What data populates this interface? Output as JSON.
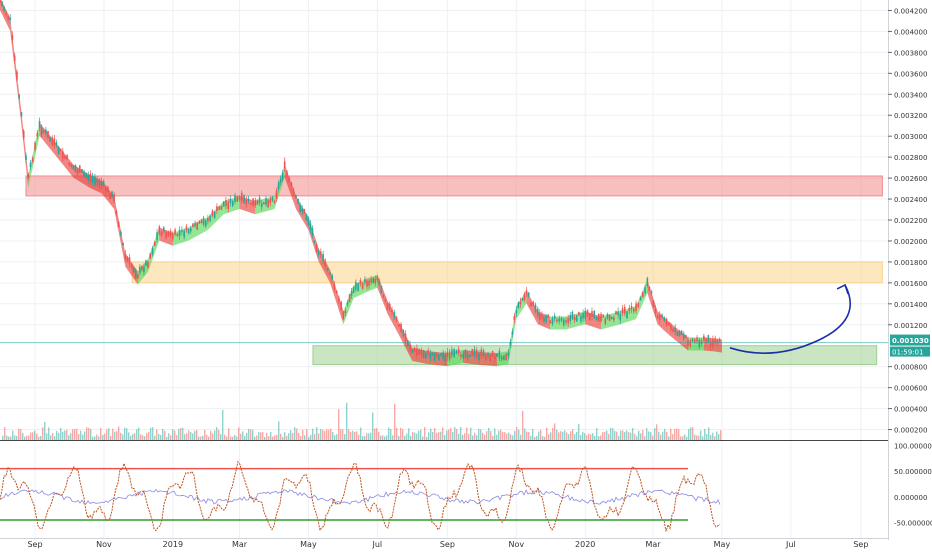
{
  "chart_data": {
    "type": "candlestick",
    "price_axis": {
      "ticks": [
        "0.004200",
        "0.004000",
        "0.003800",
        "0.003600",
        "0.003400",
        "0.003200",
        "0.003000",
        "0.002800",
        "0.002600",
        "0.002400",
        "0.002200",
        "0.002000",
        "0.001800",
        "0.001600",
        "0.001400",
        "0.001200",
        "0.000800",
        "0.000600",
        "0.000400",
        "0.000200"
      ],
      "range": [
        0.0001,
        0.0043
      ],
      "last_price_label": "0.001030",
      "last_price": 0.00103,
      "countdown_label": "01:59:01",
      "last_price_color": "#26a69a"
    },
    "time_axis": {
      "labels": [
        "Sep",
        "Nov",
        "2019",
        "Mar",
        "May",
        "Jul",
        "Sep",
        "Nov",
        "2020",
        "Mar",
        "May",
        "Jul",
        "Sep"
      ],
      "label_dates": [
        "2018-09-01",
        "2018-11-01",
        "2019-01-01",
        "2019-03-01",
        "2019-05-01",
        "2019-07-01",
        "2019-09-01",
        "2019-11-01",
        "2020-01-01",
        "2020-03-01",
        "2020-05-01",
        "2020-07-01",
        "2020-09-01"
      ],
      "range": [
        "2018-08-01",
        "2020-09-25"
      ]
    },
    "price_series": {
      "dates": [
        "2018-08-01",
        "2018-08-10",
        "2018-08-20",
        "2018-08-26",
        "2018-09-05",
        "2018-09-20",
        "2018-10-05",
        "2018-10-20",
        "2018-10-30",
        "2018-11-10",
        "2018-11-20",
        "2018-12-01",
        "2018-12-10",
        "2018-12-20",
        "2019-01-01",
        "2019-01-15",
        "2019-02-01",
        "2019-02-15",
        "2019-03-01",
        "2019-03-15",
        "2019-04-01",
        "2019-04-10",
        "2019-04-20",
        "2019-05-01",
        "2019-05-10",
        "2019-05-20",
        "2019-06-01",
        "2019-06-10",
        "2019-06-20",
        "2019-07-01",
        "2019-07-10",
        "2019-07-20",
        "2019-08-01",
        "2019-08-15",
        "2019-09-01",
        "2019-09-15",
        "2019-10-01",
        "2019-10-15",
        "2019-10-25",
        "2019-11-01",
        "2019-11-10",
        "2019-11-20",
        "2019-12-01",
        "2019-12-15",
        "2020-01-01",
        "2020-01-15",
        "2020-02-01",
        "2020-02-15",
        "2020-02-25",
        "2020-03-05",
        "2020-03-15",
        "2020-04-01",
        "2020-04-15",
        "2020-04-25",
        "2020-05-01"
      ],
      "values": [
        0.0043,
        0.0041,
        0.0032,
        0.0026,
        0.0031,
        0.0029,
        0.0027,
        0.0026,
        0.00255,
        0.0024,
        0.00185,
        0.00168,
        0.0018,
        0.0021,
        0.00205,
        0.0021,
        0.0022,
        0.00235,
        0.0024,
        0.00235,
        0.0024,
        0.0027,
        0.0024,
        0.0022,
        0.0019,
        0.0017,
        0.0013,
        0.00155,
        0.0016,
        0.00165,
        0.0014,
        0.0012,
        0.00095,
        0.00092,
        0.0009,
        0.00093,
        0.00091,
        0.0009,
        0.00092,
        0.00135,
        0.0015,
        0.0013,
        0.00125,
        0.00125,
        0.0013,
        0.00125,
        0.0013,
        0.00135,
        0.0016,
        0.0013,
        0.0012,
        0.00105,
        0.00105,
        0.00104,
        0.00103
      ]
    },
    "zones": [
      {
        "name": "resistance",
        "low": 0.00243,
        "high": 0.00262,
        "start": "2018-08-24",
        "end": "2020-09-20",
        "color": "#f28b8b"
      },
      {
        "name": "mid",
        "low": 0.0016,
        "high": 0.0018,
        "start": "2018-11-26",
        "end": "2020-09-20",
        "color": "#f9d38a"
      },
      {
        "name": "support",
        "low": 0.00082,
        "high": 0.001,
        "start": "2019-05-05",
        "end": "2020-09-15",
        "color": "#9fcf8f"
      }
    ],
    "projection_arrow": {
      "color": "#1a2fa8"
    },
    "volume": {
      "color_up": "#26a69a",
      "color_down": "#ef5350"
    },
    "oscillator": {
      "ticks": [
        "100.000000",
        "50.000000",
        "0.000000",
        "-50.000000"
      ],
      "range": [
        -80,
        105
      ],
      "upper_line": 55,
      "lower_line": -45,
      "upper_color": "#ef5350",
      "lower_color": "#2e9e2e",
      "line_color": "#c0541f",
      "signal_color": "#8a8ae0"
    }
  }
}
